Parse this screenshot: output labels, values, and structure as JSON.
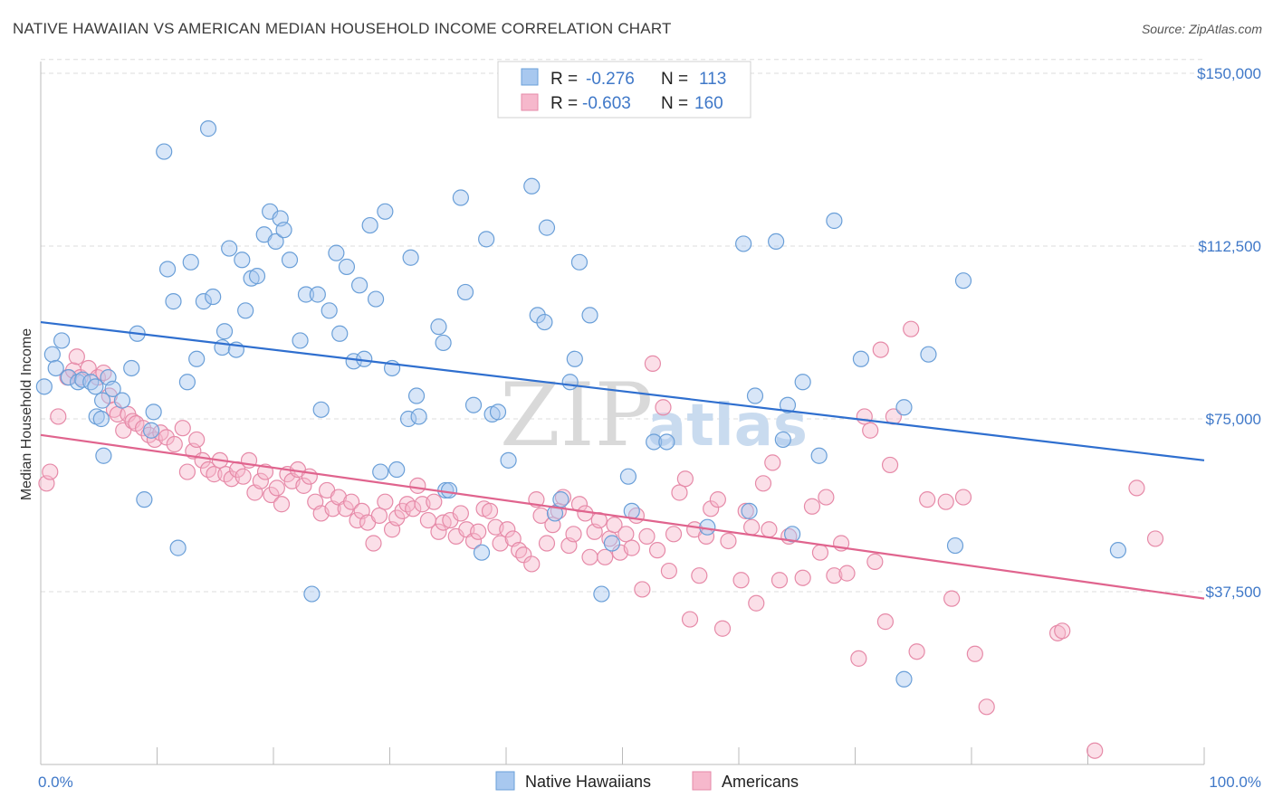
{
  "title": "NATIVE HAWAIIAN VS AMERICAN MEDIAN HOUSEHOLD INCOME CORRELATION CHART",
  "source": "Source: ZipAtlas.com",
  "watermark": {
    "zip": "ZIP",
    "atlas": "atlas"
  },
  "legend": {
    "rows": [
      {
        "r_label": "R =",
        "r_value": "-0.276",
        "n_label": "N =",
        "n_value": "113"
      },
      {
        "r_label": "R =",
        "r_value": "-0.603",
        "n_label": "N =",
        "n_value": "160"
      }
    ]
  },
  "bottom_legend": [
    "Native Hawaiians",
    "Americans"
  ],
  "colors": {
    "blue_fill": "#a8c8ef",
    "blue_stroke": "#6a9fd8",
    "blue_line": "#2f6fcf",
    "pink_fill": "#f6b8cc",
    "pink_stroke": "#e68aa8",
    "pink_line": "#e0648e",
    "tick_text": "#3f78c8",
    "grid": "#dddddd"
  },
  "chart_data": {
    "type": "scatter",
    "title": "NATIVE HAWAIIAN VS AMERICAN MEDIAN HOUSEHOLD INCOME CORRELATION CHART",
    "xlabel": "",
    "ylabel": "Median Household Income",
    "xlim": [
      0,
      100
    ],
    "ylim": [
      0,
      153000
    ],
    "x_tick_labels": [
      "0.0%",
      "100.0%"
    ],
    "y_ticks": [
      37500,
      75000,
      112500,
      150000
    ],
    "y_tick_labels": [
      "$37,500",
      "$75,000",
      "$112,500",
      "$150,000"
    ],
    "grid": "horizontal dashed",
    "legend_position": "top-center",
    "series": [
      {
        "name": "Native Hawaiians",
        "r": -0.276,
        "n": 113,
        "trend": {
          "x": [
            0,
            100
          ],
          "y": [
            96000,
            66000
          ]
        },
        "points": [
          [
            0.3,
            82000
          ],
          [
            1,
            89000
          ],
          [
            1.3,
            86000
          ],
          [
            1.8,
            92000
          ],
          [
            2.4,
            84000
          ],
          [
            3.2,
            83000
          ],
          [
            3.6,
            83500
          ],
          [
            4.3,
            83000
          ],
          [
            4.8,
            75500
          ],
          [
            4.7,
            82000
          ],
          [
            5.2,
            75000
          ],
          [
            5.3,
            79000
          ],
          [
            5.4,
            67000
          ],
          [
            5.8,
            84000
          ],
          [
            6.2,
            81500
          ],
          [
            7,
            79000
          ],
          [
            7.8,
            86000
          ],
          [
            8.3,
            93500
          ],
          [
            8.9,
            57500
          ],
          [
            9.5,
            72500
          ],
          [
            9.7,
            76500
          ],
          [
            10.6,
            133000
          ],
          [
            10.9,
            107500
          ],
          [
            11.4,
            100500
          ],
          [
            11.8,
            47000
          ],
          [
            12.6,
            83000
          ],
          [
            12.9,
            109000
          ],
          [
            13.4,
            88000
          ],
          [
            14,
            100500
          ],
          [
            14.4,
            138000
          ],
          [
            14.8,
            101500
          ],
          [
            15.6,
            90500
          ],
          [
            15.8,
            94000
          ],
          [
            16.2,
            112000
          ],
          [
            16.8,
            90000
          ],
          [
            17.3,
            109500
          ],
          [
            17.6,
            98500
          ],
          [
            18.1,
            105500
          ],
          [
            18.6,
            106000
          ],
          [
            19.2,
            115000
          ],
          [
            19.7,
            120000
          ],
          [
            20.2,
            113500
          ],
          [
            20.6,
            118500
          ],
          [
            20.9,
            116000
          ],
          [
            21.4,
            109500
          ],
          [
            22.3,
            92000
          ],
          [
            22.8,
            102000
          ],
          [
            23.3,
            37000
          ],
          [
            23.8,
            102000
          ],
          [
            24.1,
            77000
          ],
          [
            24.8,
            98500
          ],
          [
            25.4,
            111000
          ],
          [
            25.7,
            93500
          ],
          [
            26.3,
            108000
          ],
          [
            26.9,
            87500
          ],
          [
            27.4,
            104000
          ],
          [
            27.8,
            88000
          ],
          [
            28.3,
            117000
          ],
          [
            28.8,
            101000
          ],
          [
            29.2,
            63500
          ],
          [
            29.6,
            120000
          ],
          [
            30.2,
            86000
          ],
          [
            30.6,
            64000
          ],
          [
            31.6,
            75000
          ],
          [
            31.8,
            110000
          ],
          [
            32.3,
            80000
          ],
          [
            32.5,
            75500
          ],
          [
            34.2,
            95000
          ],
          [
            34.6,
            91500
          ],
          [
            34.8,
            59500
          ],
          [
            35.1,
            59500
          ],
          [
            36.1,
            123000
          ],
          [
            36.5,
            102500
          ],
          [
            37.2,
            78000
          ],
          [
            37.9,
            46000
          ],
          [
            38.3,
            114000
          ],
          [
            38.8,
            76000
          ],
          [
            39.3,
            76500
          ],
          [
            40.2,
            66000
          ],
          [
            42.2,
            125500
          ],
          [
            42.7,
            97500
          ],
          [
            43.3,
            96000
          ],
          [
            43.5,
            116500
          ],
          [
            44.2,
            54500
          ],
          [
            44.7,
            57500
          ],
          [
            45.5,
            83000
          ],
          [
            45.9,
            88000
          ],
          [
            46.3,
            109000
          ],
          [
            47.2,
            97500
          ],
          [
            48.2,
            37000
          ],
          [
            49.1,
            48000
          ],
          [
            50.5,
            62500
          ],
          [
            50.8,
            55000
          ],
          [
            52.7,
            70000
          ],
          [
            53.8,
            70000
          ],
          [
            57.3,
            51500
          ],
          [
            60.4,
            113000
          ],
          [
            60.9,
            55000
          ],
          [
            61.4,
            80000
          ],
          [
            63.2,
            113500
          ],
          [
            63.8,
            70500
          ],
          [
            64.2,
            78000
          ],
          [
            64.6,
            50000
          ],
          [
            65.5,
            83000
          ],
          [
            66.9,
            67000
          ],
          [
            68.2,
            118000
          ],
          [
            70.5,
            88000
          ],
          [
            74.2,
            77500
          ],
          [
            74.2,
            18500
          ],
          [
            76.3,
            89000
          ],
          [
            78.6,
            47500
          ],
          [
            79.3,
            105000
          ],
          [
            92.6,
            46500
          ]
        ]
      },
      {
        "name": "Americans",
        "r": -0.603,
        "n": 160,
        "trend": {
          "x": [
            0,
            100
          ],
          "y": [
            71500,
            36000
          ]
        },
        "points": [
          [
            0.5,
            61000
          ],
          [
            0.8,
            63500
          ],
          [
            1.5,
            75500
          ],
          [
            2.3,
            84000
          ],
          [
            2.8,
            85500
          ],
          [
            3.1,
            88500
          ],
          [
            3.4,
            84000
          ],
          [
            4.1,
            86000
          ],
          [
            4.9,
            84000
          ],
          [
            5.4,
            85000
          ],
          [
            5.9,
            80000
          ],
          [
            6.3,
            77000
          ],
          [
            6.6,
            76000
          ],
          [
            7.1,
            72500
          ],
          [
            7.5,
            76000
          ],
          [
            7.9,
            74500
          ],
          [
            8.2,
            74000
          ],
          [
            8.8,
            73000
          ],
          [
            9.3,
            71500
          ],
          [
            9.8,
            70500
          ],
          [
            10.3,
            72000
          ],
          [
            10.8,
            71000
          ],
          [
            11.5,
            69500
          ],
          [
            12.2,
            73000
          ],
          [
            12.6,
            63500
          ],
          [
            13.1,
            68000
          ],
          [
            13.4,
            70500
          ],
          [
            13.9,
            66000
          ],
          [
            14.4,
            64000
          ],
          [
            14.9,
            63000
          ],
          [
            15.4,
            66000
          ],
          [
            15.9,
            63000
          ],
          [
            16.4,
            62000
          ],
          [
            16.9,
            64000
          ],
          [
            17.4,
            62500
          ],
          [
            17.9,
            66000
          ],
          [
            18.4,
            59000
          ],
          [
            18.9,
            61500
          ],
          [
            19.3,
            63500
          ],
          [
            19.8,
            58500
          ],
          [
            20.3,
            60000
          ],
          [
            20.7,
            56500
          ],
          [
            21.2,
            63000
          ],
          [
            21.6,
            61500
          ],
          [
            22.1,
            64000
          ],
          [
            22.6,
            60500
          ],
          [
            23.1,
            62500
          ],
          [
            23.6,
            57000
          ],
          [
            24.1,
            54500
          ],
          [
            24.6,
            59500
          ],
          [
            25.1,
            55500
          ],
          [
            25.6,
            58000
          ],
          [
            26.2,
            55500
          ],
          [
            26.7,
            57000
          ],
          [
            27.2,
            53000
          ],
          [
            27.6,
            55000
          ],
          [
            28.1,
            52500
          ],
          [
            28.6,
            48000
          ],
          [
            29.1,
            54000
          ],
          [
            29.6,
            57000
          ],
          [
            30.2,
            51000
          ],
          [
            30.6,
            53500
          ],
          [
            31.1,
            55000
          ],
          [
            31.5,
            56500
          ],
          [
            32,
            55500
          ],
          [
            32.4,
            60500
          ],
          [
            32.8,
            56500
          ],
          [
            33.3,
            53000
          ],
          [
            33.8,
            57000
          ],
          [
            34.2,
            50500
          ],
          [
            34.6,
            52500
          ],
          [
            35.2,
            53000
          ],
          [
            35.7,
            49500
          ],
          [
            36.1,
            54500
          ],
          [
            36.6,
            51000
          ],
          [
            37.2,
            48500
          ],
          [
            37.6,
            50500
          ],
          [
            38.1,
            55500
          ],
          [
            38.6,
            55000
          ],
          [
            39.1,
            51500
          ],
          [
            39.5,
            48000
          ],
          [
            40.1,
            51000
          ],
          [
            40.6,
            49000
          ],
          [
            41.1,
            46500
          ],
          [
            41.5,
            45500
          ],
          [
            42.2,
            43500
          ],
          [
            42.6,
            57500
          ],
          [
            43,
            54000
          ],
          [
            43.5,
            48000
          ],
          [
            44,
            52000
          ],
          [
            44.5,
            55000
          ],
          [
            44.9,
            58000
          ],
          [
            45.4,
            47500
          ],
          [
            45.8,
            50000
          ],
          [
            46.3,
            56500
          ],
          [
            46.8,
            54500
          ],
          [
            47.2,
            45000
          ],
          [
            47.6,
            50500
          ],
          [
            48,
            53000
          ],
          [
            48.5,
            45000
          ],
          [
            48.9,
            49000
          ],
          [
            49.3,
            52000
          ],
          [
            49.8,
            46000
          ],
          [
            50.3,
            50000
          ],
          [
            50.8,
            47000
          ],
          [
            51.2,
            54000
          ],
          [
            51.7,
            38000
          ],
          [
            52.1,
            49500
          ],
          [
            52.6,
            87000
          ],
          [
            53,
            46500
          ],
          [
            53.5,
            77500
          ],
          [
            54,
            42000
          ],
          [
            54.4,
            50000
          ],
          [
            54.9,
            59000
          ],
          [
            55.4,
            62000
          ],
          [
            55.8,
            31500
          ],
          [
            56.2,
            51000
          ],
          [
            56.6,
            41000
          ],
          [
            57.2,
            49500
          ],
          [
            57.6,
            55500
          ],
          [
            58.2,
            57500
          ],
          [
            58.6,
            29500
          ],
          [
            59.1,
            48500
          ],
          [
            60.2,
            40000
          ],
          [
            60.6,
            55000
          ],
          [
            61.1,
            51500
          ],
          [
            61.5,
            35000
          ],
          [
            62.1,
            61000
          ],
          [
            62.6,
            51000
          ],
          [
            62.9,
            65500
          ],
          [
            63.5,
            40000
          ],
          [
            64.3,
            49500
          ],
          [
            65.5,
            40500
          ],
          [
            66.3,
            56000
          ],
          [
            67,
            46000
          ],
          [
            67.5,
            58000
          ],
          [
            68.2,
            41000
          ],
          [
            68.8,
            48000
          ],
          [
            69.3,
            41500
          ],
          [
            70.3,
            23000
          ],
          [
            70.8,
            75500
          ],
          [
            71.3,
            72500
          ],
          [
            71.7,
            44000
          ],
          [
            72.2,
            90000
          ],
          [
            72.6,
            31000
          ],
          [
            73,
            65000
          ],
          [
            73.3,
            75500
          ],
          [
            74.8,
            94500
          ],
          [
            75.3,
            24500
          ],
          [
            76.2,
            57500
          ],
          [
            77.8,
            57000
          ],
          [
            78.3,
            36000
          ],
          [
            79.3,
            58000
          ],
          [
            80.3,
            24000
          ],
          [
            81.3,
            12500
          ],
          [
            87.4,
            28500
          ],
          [
            87.8,
            29000
          ],
          [
            90.6,
            3000
          ],
          [
            94.2,
            60000
          ],
          [
            95.8,
            49000
          ]
        ]
      }
    ]
  }
}
